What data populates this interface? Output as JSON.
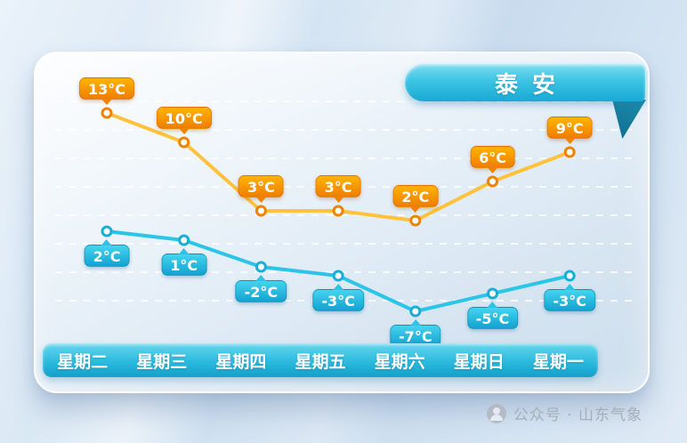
{
  "banner": {
    "title": "泰安"
  },
  "watermark": {
    "text": "公众号 · 山东气象",
    "icon": "wechat-official-account-icon"
  },
  "colors": {
    "high_line": "#ffc23a",
    "high_point": "#ef8300",
    "high_badge_top": "#ffb400",
    "high_badge_bottom": "#ef7d00",
    "low_line": "#2cc5e8",
    "low_point": "#18aed6",
    "low_badge_top": "#45d3ef",
    "low_badge_bottom": "#12a3d0",
    "banner_background": "#2bbade",
    "day_bar_background": "#2bbade",
    "grid_line": "rgba(255,255,255,0.75)"
  },
  "chart_data": {
    "type": "line",
    "title": "泰安",
    "categories": [
      "星期二",
      "星期三",
      "星期四",
      "星期五",
      "星期六",
      "星期日",
      "星期一"
    ],
    "series": [
      {
        "name": "high",
        "values": [
          13,
          10,
          3,
          3,
          2,
          6,
          9
        ],
        "labels": [
          "13°C",
          "10°C",
          "3°C",
          "3°C",
          "2°C",
          "6°C",
          "9°C"
        ],
        "color": "#ffc23a"
      },
      {
        "name": "low",
        "values": [
          2,
          1,
          -2,
          -3,
          -7,
          -5,
          -3
        ],
        "labels": [
          "2°C",
          "1°C",
          "-2°C",
          "-3°C",
          "-7°C",
          "-5°C",
          "-3°C"
        ],
        "color": "#2cc5e8"
      }
    ],
    "unit": "°C",
    "grid": "horizontal-dashed",
    "legend": "none",
    "ylim": [
      -9,
      15
    ]
  }
}
